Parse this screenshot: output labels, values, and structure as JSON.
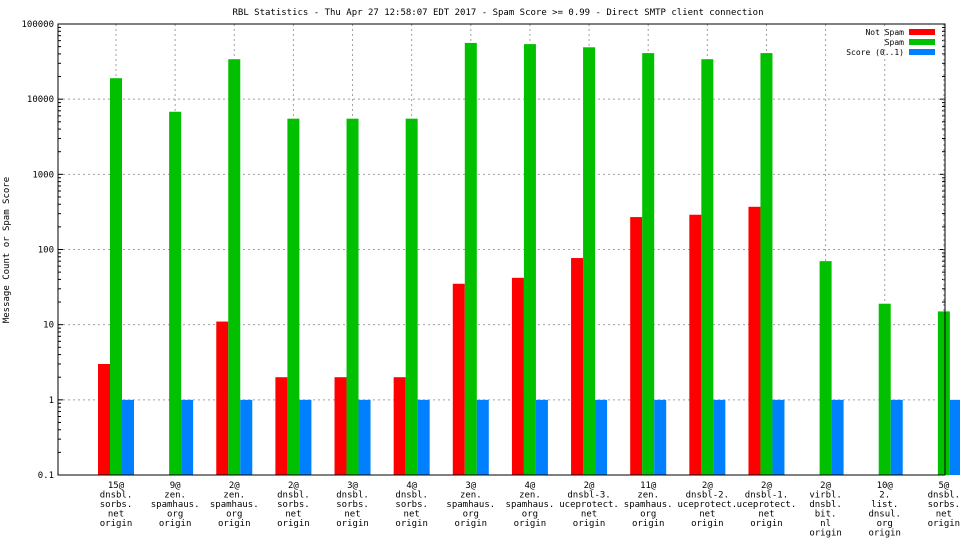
{
  "chart_data": {
    "type": "bar",
    "title": "RBL Statistics - Thu Apr 27 12:58:07 EDT 2017 - Spam Score >= 0.99 - Direct SMTP client connection",
    "ylabel": "Message Count or Spam Score",
    "xlabel": "",
    "yscale": "log",
    "ylim": [
      0.1,
      100000
    ],
    "yticks": [
      "0.1",
      "1",
      "10",
      "100",
      "1000",
      "10000",
      "100000"
    ],
    "grid": true,
    "legend_position": "top-right",
    "categories": [
      [
        "15@",
        "dnsbl.",
        "sorbs.",
        "net",
        "origin"
      ],
      [
        "9@",
        "zen.",
        "spamhaus.",
        "org",
        "origin"
      ],
      [
        "2@",
        "zen.",
        "spamhaus.",
        "org",
        "origin"
      ],
      [
        "2@",
        "dnsbl.",
        "sorbs.",
        "net",
        "origin"
      ],
      [
        "3@",
        "dnsbl.",
        "sorbs.",
        "net",
        "origin"
      ],
      [
        "4@",
        "dnsbl.",
        "sorbs.",
        "net",
        "origin"
      ],
      [
        "3@",
        "zen.",
        "spamhaus.",
        "org",
        "origin"
      ],
      [
        "4@",
        "zen.",
        "spamhaus.",
        "org",
        "origin"
      ],
      [
        "2@",
        "dnsbl-3.",
        "uceprotect.",
        "net",
        "origin"
      ],
      [
        "11@",
        "zen.",
        "spamhaus.",
        "org",
        "origin"
      ],
      [
        "2@",
        "dnsbl-2.",
        "uceprotect.",
        "net",
        "origin"
      ],
      [
        "2@",
        "dnsbl-1.",
        "uceprotect.",
        "net",
        "origin"
      ],
      [
        "2@",
        "virbl.",
        "dnsbl.",
        "bit.",
        "nl",
        "origin"
      ],
      [
        "10@",
        "2.",
        "list.",
        "dnsul.",
        "org",
        "origin"
      ],
      [
        "5@",
        "dnsbl.",
        "sorbs.",
        "net",
        "origin"
      ]
    ],
    "series": [
      {
        "name": "Not Spam",
        "color": "#ff0000",
        "values": [
          3,
          null,
          11,
          2,
          2,
          2,
          35,
          42,
          77,
          270,
          290,
          370,
          null,
          null,
          null
        ]
      },
      {
        "name": "Spam",
        "color": "#00c000",
        "values": [
          19000,
          6800,
          34000,
          5500,
          5500,
          5500,
          56000,
          54000,
          49000,
          41000,
          34000,
          41000,
          70,
          19,
          15
        ]
      },
      {
        "name": "Score (0..1)",
        "color": "#0080ff",
        "values": [
          1,
          1,
          1,
          1,
          1,
          1,
          1,
          1,
          1,
          1,
          1,
          1,
          1,
          1,
          1
        ]
      }
    ]
  }
}
